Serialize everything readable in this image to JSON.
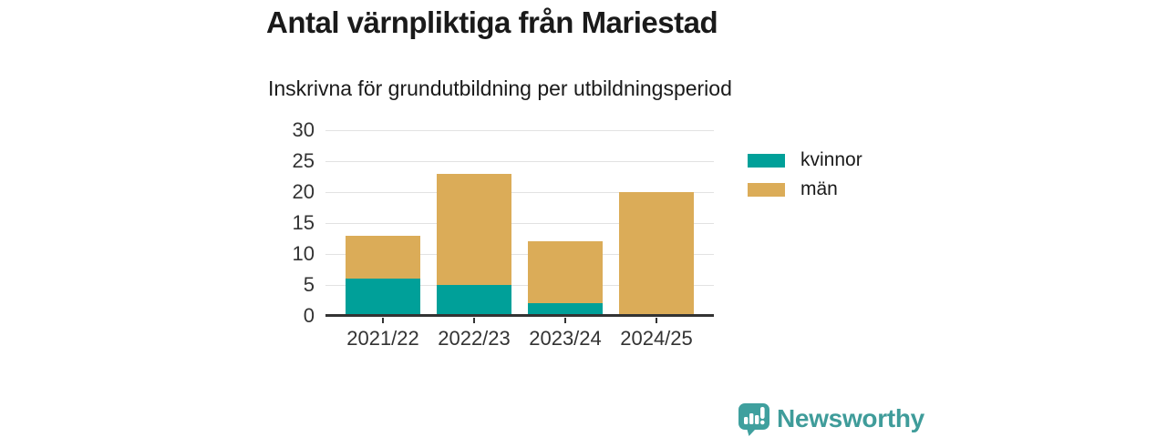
{
  "header": {
    "title": "Antal värnpliktiga från Mariestad",
    "subtitle": "Inskrivna för grundutbildning per utbildningsperiod"
  },
  "chart_data": {
    "type": "bar",
    "stacked": true,
    "title": "Antal värnpliktiga från Mariestad",
    "subtitle": "Inskrivna för grundutbildning per utbildningsperiod",
    "categories": [
      "2021/22",
      "2022/23",
      "2023/24",
      "2024/25"
    ],
    "series": [
      {
        "name": "kvinnor",
        "color": "#00a099",
        "values": [
          6,
          5,
          2,
          0
        ]
      },
      {
        "name": "män",
        "color": "#dbac58",
        "values": [
          7,
          18,
          10,
          20
        ]
      }
    ],
    "stack_totals": [
      13,
      23,
      12,
      20
    ],
    "xlabel": "",
    "ylabel": "",
    "ylim": [
      0,
      30
    ],
    "yticks": [
      0,
      5,
      10,
      15,
      20,
      25,
      30
    ],
    "grid": true,
    "legend_position": "right"
  },
  "colors": {
    "kvinnor": "#00a099",
    "man": "#dbac58",
    "axis_line": "#333333",
    "gridline": "#e2e2e2",
    "text": "#1a1a1a",
    "brand_teal": "#3f9c9a",
    "background": "#ffffff"
  },
  "footer": {
    "brand": "Newsworthy",
    "logo_icon": "bar-chart-speech-bubble-icon"
  }
}
